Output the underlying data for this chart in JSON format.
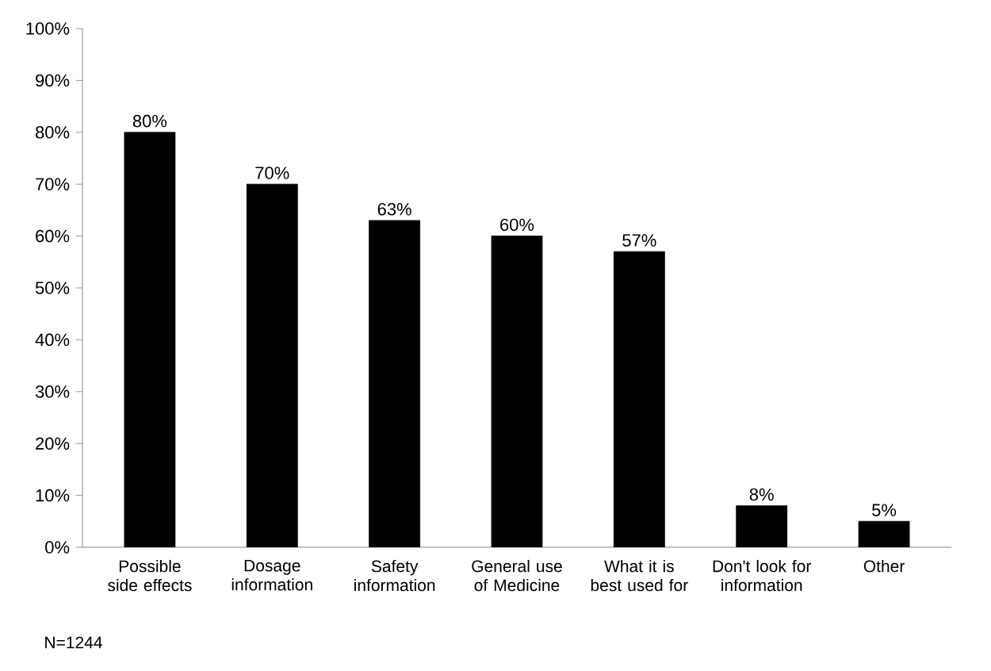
{
  "chart_data": {
    "type": "bar",
    "categories": [
      "Possible side effects",
      "Dosage information",
      "Safety information",
      "General use of Medicine",
      "What it is best used for",
      "Don't look for information",
      "Other"
    ],
    "values": [
      80,
      70,
      63,
      60,
      57,
      8,
      5
    ],
    "value_labels": [
      "80%",
      "70%",
      "63%",
      "60%",
      "57%",
      "8%",
      "5%"
    ],
    "color": "#000000",
    "ylim": [
      0,
      100
    ],
    "yticks": [
      {
        "value": 0,
        "label": "0%"
      },
      {
        "value": 10,
        "label": "10%"
      },
      {
        "value": 20,
        "label": "20%"
      },
      {
        "value": 30,
        "label": "30%"
      },
      {
        "value": 40,
        "label": "40%"
      },
      {
        "value": 50,
        "label": "50%"
      },
      {
        "value": 60,
        "label": "60%"
      },
      {
        "value": 70,
        "label": "70%"
      },
      {
        "value": 80,
        "label": "80%"
      },
      {
        "value": 90,
        "label": "90%"
      },
      {
        "value": 100,
        "label": "100%"
      }
    ],
    "grid": false,
    "annotations": [
      "N=1244"
    ]
  }
}
